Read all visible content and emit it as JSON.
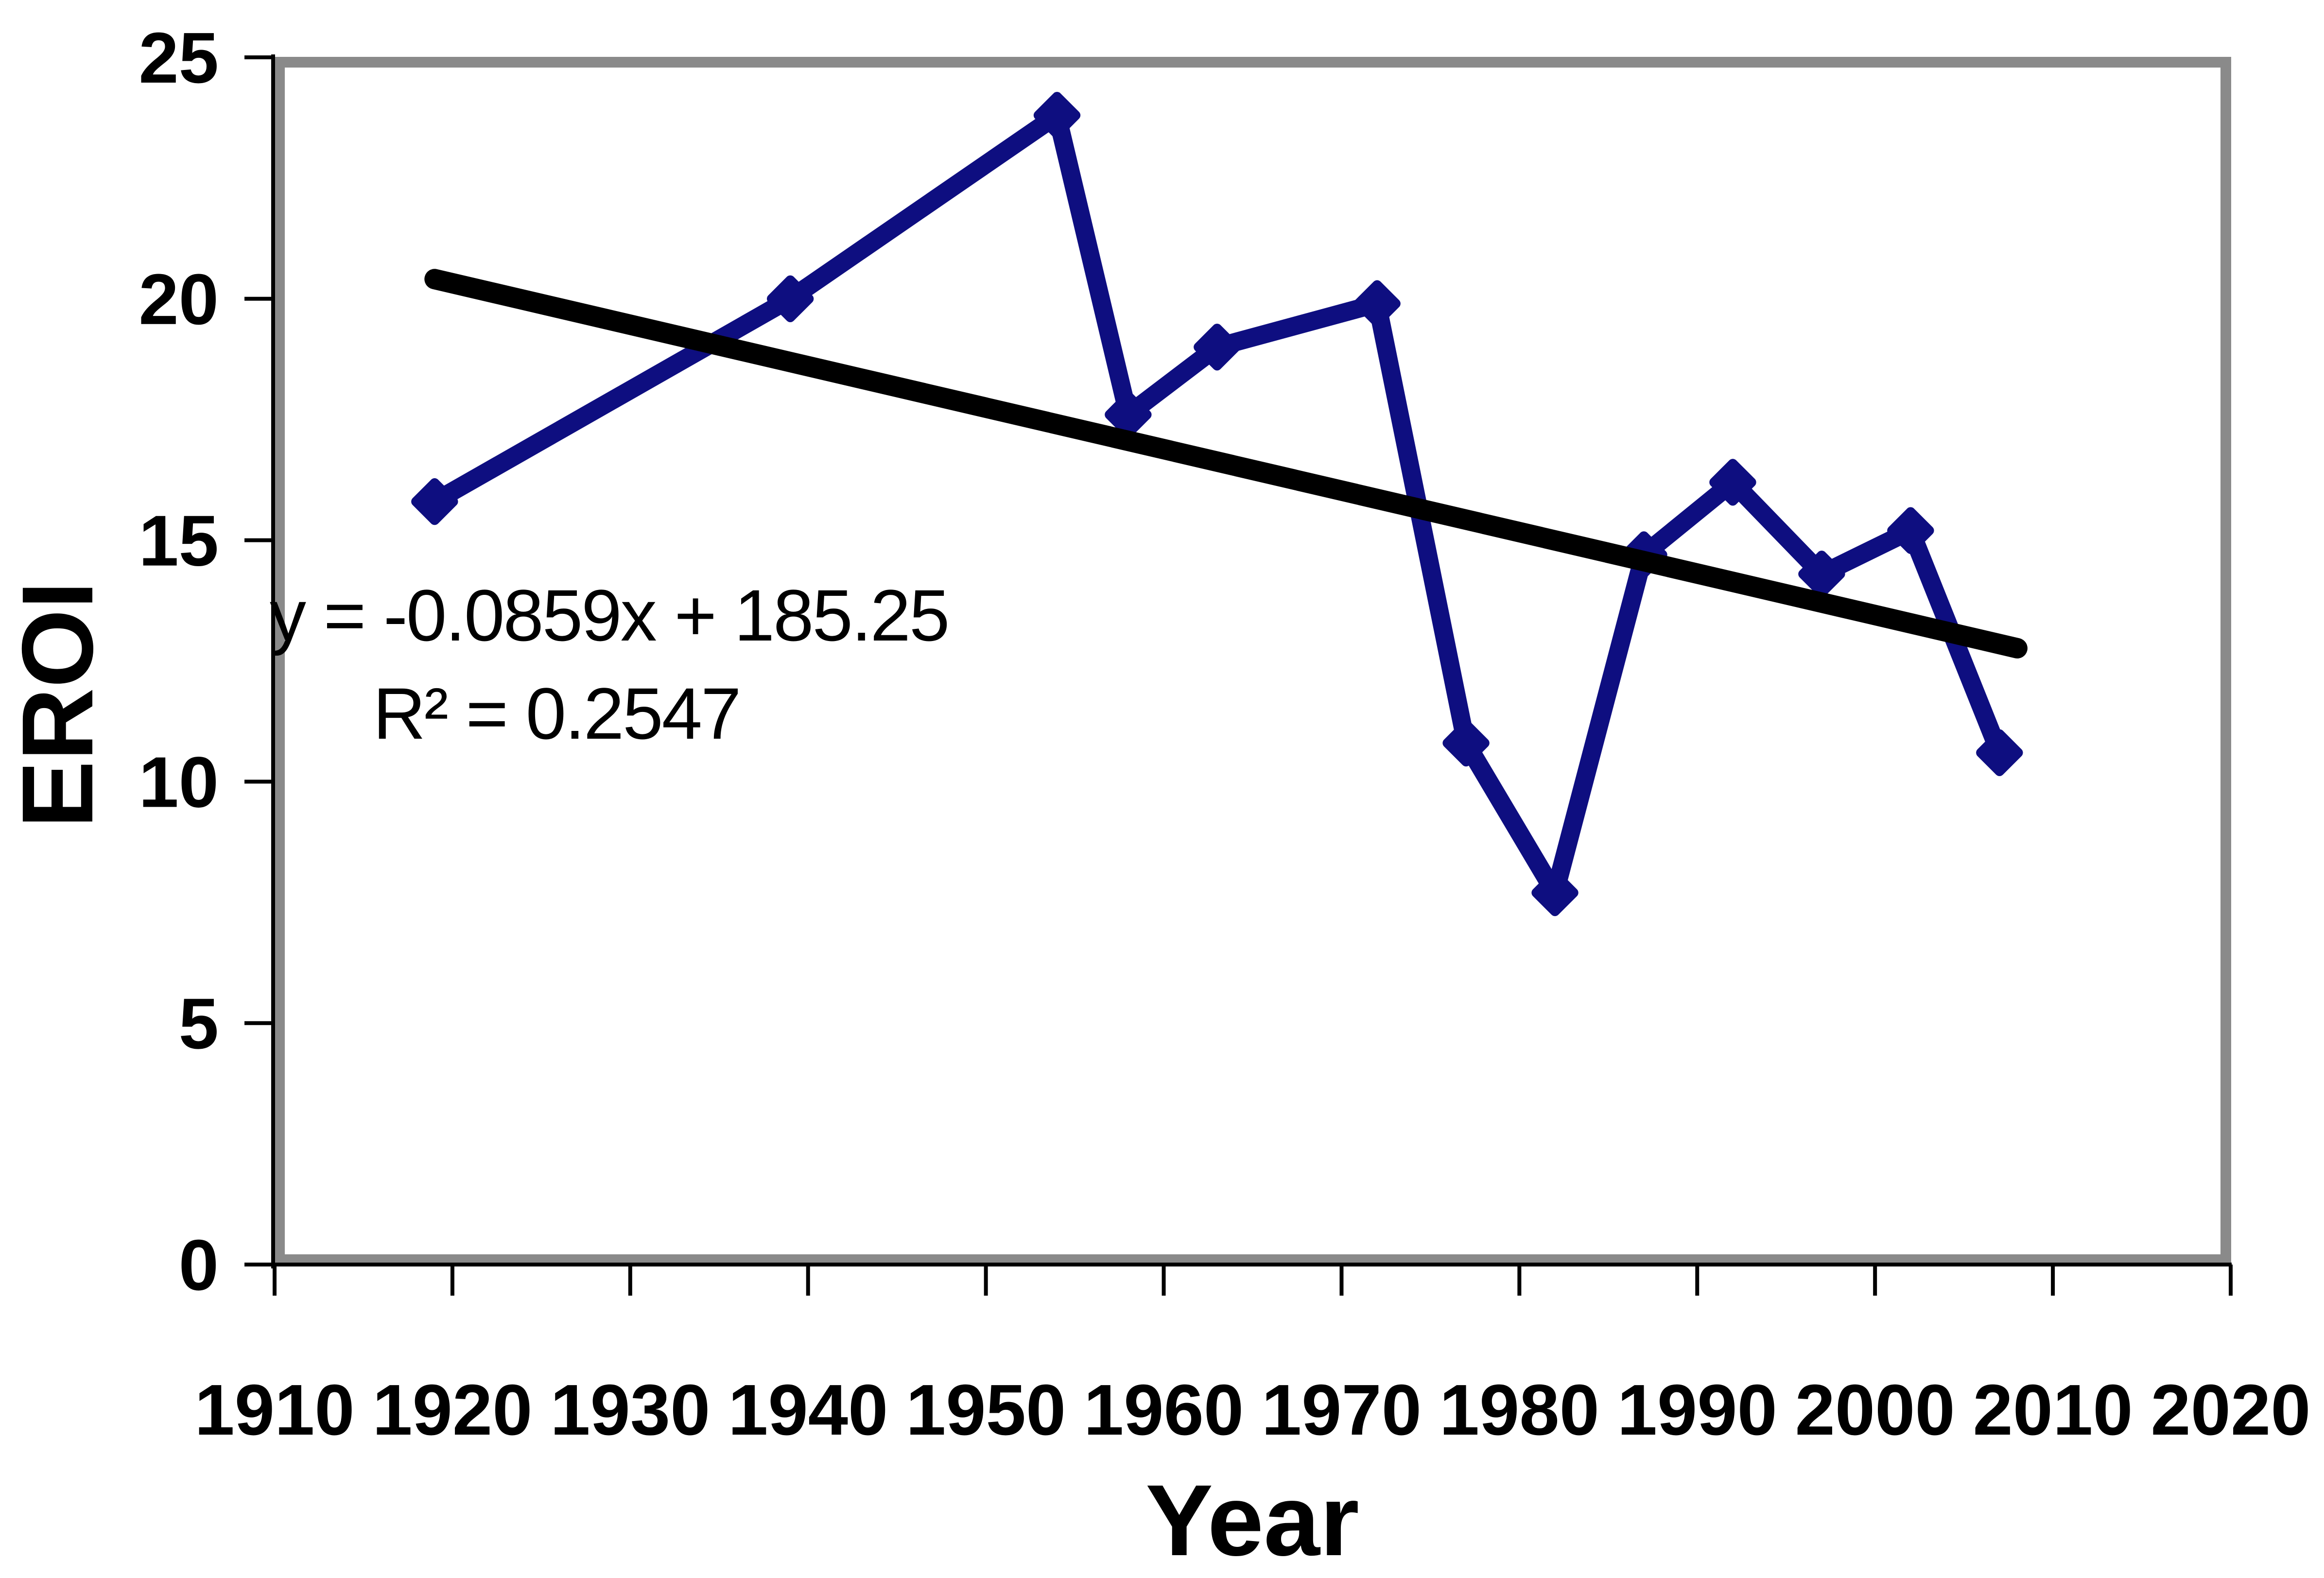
{
  "chart_data": {
    "type": "line",
    "title": "",
    "xlabel": "Year",
    "ylabel": "EROI",
    "xlim": [
      1910,
      2020
    ],
    "ylim": [
      0,
      25
    ],
    "x_ticks": [
      1910,
      1920,
      1930,
      1940,
      1950,
      1960,
      1970,
      1980,
      1990,
      2000,
      2010,
      2020
    ],
    "y_ticks": [
      0,
      5,
      10,
      15,
      20,
      25
    ],
    "grid": false,
    "legend_position": "none",
    "series": [
      {
        "name": "EROI",
        "color": "#0e0e80",
        "marker": "diamond",
        "points": [
          [
            1919,
            15.8
          ],
          [
            1939,
            20.0
          ],
          [
            1954,
            23.8
          ],
          [
            1958,
            17.6
          ],
          [
            1963,
            19.0
          ],
          [
            1972,
            19.9
          ],
          [
            1977,
            10.8
          ],
          [
            1982,
            7.7
          ],
          [
            1987,
            14.7
          ],
          [
            1992,
            16.2
          ],
          [
            1997,
            14.3
          ],
          [
            2002,
            15.2
          ],
          [
            2007,
            10.6
          ]
        ]
      }
    ],
    "trendline": {
      "slope": -0.0859,
      "intercept": 185.25,
      "x_start": 1919,
      "x_end": 2008,
      "color": "#000000",
      "equation_label": "y = -0.0859x + 185.25",
      "r2_label": "R² = 0.2547"
    }
  },
  "colors": {
    "series": "#0e0e80",
    "trendline": "#000000",
    "frame": "#8a8a8a",
    "axis": "#000000",
    "background": "#ffffff"
  }
}
